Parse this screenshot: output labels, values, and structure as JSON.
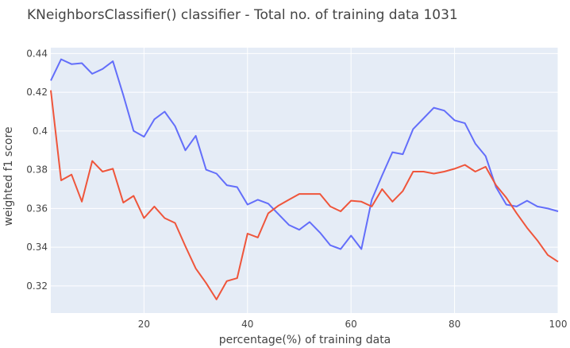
{
  "chart_data": {
    "type": "line",
    "title": "KNeighborsClassifier() classifier - Total no. of training data 1031",
    "xlabel": "percentage(%) of training data",
    "ylabel": "weighted f1 score",
    "xlim": [
      2,
      100
    ],
    "ylim": [
      0.306,
      0.443
    ],
    "xticks": [
      20,
      40,
      60,
      80,
      100
    ],
    "yticks": [
      0.32,
      0.34,
      0.36,
      0.38,
      0.4,
      0.42,
      0.44
    ],
    "ytick_labels": [
      "0.32",
      "0.34",
      "0.36",
      "0.38",
      "0.4",
      "0.42",
      "0.44"
    ],
    "grid": true,
    "plot_bgcolor": "#E5ECF6",
    "x": [
      2,
      4,
      6,
      8,
      10,
      12,
      14,
      16,
      18,
      20,
      22,
      24,
      26,
      28,
      30,
      32,
      34,
      36,
      38,
      40,
      42,
      44,
      46,
      48,
      50,
      52,
      54,
      56,
      58,
      60,
      62,
      64,
      66,
      68,
      70,
      72,
      74,
      76,
      78,
      80,
      82,
      84,
      86,
      88,
      90,
      92,
      94,
      96,
      98,
      100
    ],
    "series": [
      {
        "color": "#636EFA",
        "values": [
          0.426,
          0.437,
          0.4345,
          0.435,
          0.4295,
          0.432,
          0.436,
          0.4185,
          0.4,
          0.397,
          0.406,
          0.41,
          0.4025,
          0.39,
          0.3975,
          0.38,
          0.378,
          0.372,
          0.371,
          0.362,
          0.3645,
          0.3625,
          0.357,
          0.3515,
          0.349,
          0.353,
          0.3475,
          0.341,
          0.339,
          0.346,
          0.339,
          0.3645,
          0.377,
          0.389,
          0.388,
          0.401,
          0.4065,
          0.412,
          0.4105,
          0.4055,
          0.404,
          0.3935,
          0.387,
          0.371,
          0.362,
          0.361,
          0.364,
          0.361,
          0.36,
          0.3585
        ]
      },
      {
        "color": "#EF553B",
        "values": [
          0.421,
          0.3745,
          0.3775,
          0.3635,
          0.3845,
          0.379,
          0.3805,
          0.363,
          0.3665,
          0.355,
          0.361,
          0.355,
          0.3525,
          0.3405,
          0.329,
          0.3215,
          0.313,
          0.3225,
          0.324,
          0.347,
          0.345,
          0.3575,
          0.3615,
          0.3645,
          0.3675,
          0.3675,
          0.3675,
          0.361,
          0.3585,
          0.364,
          0.3635,
          0.361,
          0.37,
          0.3635,
          0.369,
          0.379,
          0.379,
          0.378,
          0.379,
          0.3805,
          0.3825,
          0.379,
          0.3815,
          0.372,
          0.3655,
          0.3575,
          0.35,
          0.3435,
          0.336,
          0.3325
        ]
      }
    ]
  }
}
